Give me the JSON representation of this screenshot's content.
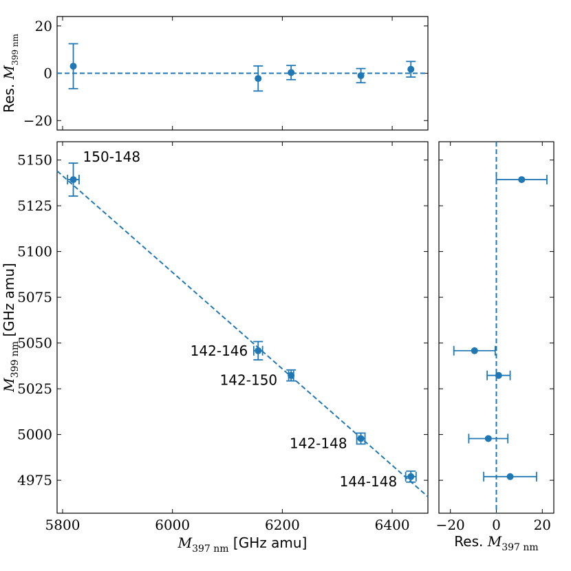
{
  "colors": {
    "series": "#1f77b4",
    "axis": "#000000"
  },
  "chart_data": [
    {
      "id": "top",
      "type": "scatter",
      "x_axis": "shared with main panel (M397 nm)",
      "ylabel": {
        "pre": "Res. ",
        "m": "M",
        "sub": "399 nm"
      },
      "xlim": [
        5790,
        6465
      ],
      "ylim": [
        -24,
        24
      ],
      "yticks": [
        -20,
        0,
        20
      ],
      "yticklabels": [
        "−20",
        "0",
        "20"
      ],
      "xticks": [
        5800,
        6000,
        6200,
        6400
      ],
      "reference_line": 0,
      "points": [
        {
          "x": 5819.5,
          "y": 3.0,
          "yerr": 9.5
        },
        {
          "x": 6156.0,
          "y": -2.2,
          "yerr": 5.3
        },
        {
          "x": 6216.0,
          "y": 0.3,
          "yerr": 3.0
        },
        {
          "x": 6343.0,
          "y": -1.0,
          "yerr": 3.0
        },
        {
          "x": 6434.0,
          "y": 1.7,
          "yerr": 3.3
        }
      ]
    },
    {
      "id": "main",
      "type": "scatter",
      "xlabel": {
        "m": "M",
        "sub": "397 nm",
        "post": " [GHz amu]"
      },
      "ylabel": {
        "m": "M",
        "sub": "399 nm",
        "post": " [GHz amu]"
      },
      "xlim": [
        5790,
        6465
      ],
      "ylim": [
        4957,
        5160
      ],
      "xticks": [
        5800,
        6000,
        6200,
        6400
      ],
      "xticklabels": [
        "5800",
        "6000",
        "6200",
        "6400"
      ],
      "yticks": [
        4975,
        5000,
        5025,
        5050,
        5075,
        5100,
        5125,
        5150
      ],
      "yticklabels": [
        "4975",
        "5000",
        "5025",
        "5050",
        "5075",
        "5100",
        "5125",
        "5150"
      ],
      "fit_line": {
        "x": [
          5790,
          6465
        ],
        "y": [
          5144.0,
          4966.0
        ]
      },
      "points": [
        {
          "label": "150-148",
          "x": 5819.5,
          "y": 5139.3,
          "xerr": 10.5,
          "yerr": 9.0,
          "label_pos": "right-above"
        },
        {
          "label": "142-146",
          "x": 6156.0,
          "y": 5045.8,
          "xerr": 8.0,
          "yerr": 5.0,
          "label_pos": "left"
        },
        {
          "label": "142-150",
          "x": 6216.0,
          "y": 5032.3,
          "xerr": 4.5,
          "yerr": 3.0,
          "label_pos": "left-below"
        },
        {
          "label": "142-148",
          "x": 6343.0,
          "y": 4997.8,
          "xerr": 7.5,
          "yerr": 3.0,
          "label_pos": "left-below"
        },
        {
          "label": "144-148",
          "x": 6434.0,
          "y": 4977.0,
          "xerr": 9.5,
          "yerr": 3.0,
          "label_pos": "left-below"
        }
      ]
    },
    {
      "id": "right",
      "type": "scatter",
      "xlabel": {
        "pre": "Res. ",
        "m": "M",
        "sub": "397 nm"
      },
      "xlim": [
        -25,
        25
      ],
      "ylim": "shared with main panel (M399 nm)",
      "xticks": [
        -20,
        0,
        20
      ],
      "xticklabels": [
        "−20",
        "0",
        "20"
      ],
      "yticks": [
        4975,
        5000,
        5025,
        5050,
        5075,
        5100,
        5125,
        5150
      ],
      "reference_line": 0,
      "points": [
        {
          "x": 11.0,
          "xerr": 11.0,
          "y": 5139.3
        },
        {
          "x": -9.5,
          "xerr": 9.0,
          "y": 5045.8
        },
        {
          "x": 1.0,
          "xerr": 5.0,
          "y": 5032.3
        },
        {
          "x": -3.5,
          "xerr": 8.5,
          "y": 4997.8
        },
        {
          "x": 6.0,
          "xerr": 11.5,
          "y": 4977.0
        }
      ]
    }
  ]
}
